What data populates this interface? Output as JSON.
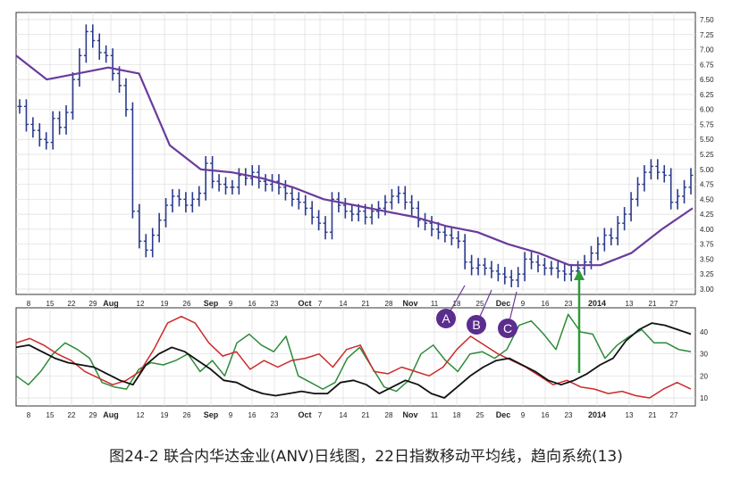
{
  "caption": "图24-2 联合内华达金业(ANV)日线图，22日指数移动平均线，趋向系统(13)",
  "chart_data": [
    {
      "type": "line",
      "title": "",
      "x_tick_labels": [
        "8",
        "15",
        "22",
        "29",
        "Aug",
        "12",
        "19",
        "26",
        "Sep",
        "9",
        "16",
        "23",
        "Oct",
        "7",
        "14",
        "21",
        "28",
        "Nov",
        "11",
        "18",
        "25",
        "Dec",
        "9",
        "16",
        "23",
        "2014",
        "13",
        "21",
        "27"
      ],
      "month_labels": [
        "Aug",
        "Sep",
        "Oct",
        "Nov",
        "Dec",
        "2014"
      ],
      "ylim": [
        3.0,
        7.5
      ],
      "y_ticks": [
        "3.00",
        "3.25",
        "3.50",
        "3.75",
        "4.00",
        "4.25",
        "4.50",
        "4.75",
        "5.00",
        "5.25",
        "5.50",
        "5.75",
        "6.00",
        "6.25",
        "6.50",
        "6.75",
        "7.00",
        "7.25",
        "7.50"
      ],
      "grid": true,
      "annotations": [
        "A",
        "B",
        "C"
      ],
      "series": [
        {
          "style": "ohlc",
          "color": "#2b3a8c",
          "values": [
            6.05,
            5.75,
            5.65,
            5.5,
            5.45,
            5.85,
            5.7,
            5.95,
            6.5,
            6.9,
            7.3,
            7.15,
            6.95,
            6.9,
            6.6,
            6.4,
            6.0,
            4.3,
            3.8,
            3.65,
            3.9,
            4.15,
            4.4,
            4.55,
            4.5,
            4.4,
            4.5,
            4.6,
            5.1,
            4.8,
            4.75,
            4.7,
            4.7,
            4.9,
            4.85,
            4.95,
            4.8,
            4.75,
            4.8,
            4.7,
            4.6,
            4.5,
            4.45,
            4.35,
            4.2,
            4.1,
            3.95,
            4.5,
            4.4,
            4.3,
            4.25,
            4.3,
            4.2,
            4.3,
            4.35,
            4.45,
            4.55,
            4.6,
            4.45,
            4.35,
            4.15,
            4.1,
            4.0,
            3.95,
            3.9,
            3.85,
            3.8,
            3.45,
            3.35,
            3.4,
            3.35,
            3.3,
            3.25,
            3.2,
            3.15,
            3.25,
            3.5,
            3.45,
            3.4,
            3.35,
            3.35,
            3.3,
            3.25,
            3.3,
            3.35,
            3.45,
            3.6,
            3.75,
            3.9,
            3.85,
            4.1,
            4.25,
            4.5,
            4.75,
            4.95,
            5.05,
            4.95,
            4.9,
            4.45,
            4.55,
            4.7,
            4.9
          ]
        },
        {
          "name": "",
          "style": "ema-22",
          "color": "#6a3b9c",
          "values": [
            6.9,
            6.5,
            6.6,
            6.7,
            6.6,
            5.4,
            5.0,
            4.95,
            4.85,
            4.7,
            4.5,
            4.4,
            4.3,
            4.2,
            4.05,
            3.95,
            3.75,
            3.6,
            3.4,
            3.4,
            3.6,
            4.0,
            4.35
          ]
        }
      ]
    },
    {
      "type": "line",
      "title": "",
      "x_tick_labels": [
        "8",
        "15",
        "22",
        "29",
        "Aug",
        "12",
        "19",
        "26",
        "Sep",
        "9",
        "16",
        "23",
        "Oct",
        "7",
        "14",
        "21",
        "28",
        "Nov",
        "11",
        "18",
        "25",
        "Dec",
        "9",
        "16",
        "23",
        "2014",
        "13",
        "21",
        "27"
      ],
      "ylim": [
        5,
        50
      ],
      "y_ticks": [
        "10",
        "20",
        "30",
        "40"
      ],
      "grid": true,
      "series": [
        {
          "color": "#2e8b3a",
          "values": [
            20,
            16,
            22,
            30,
            35,
            32,
            28,
            17,
            15,
            14,
            23,
            26,
            25,
            27,
            30,
            22,
            27,
            20,
            35,
            39,
            34,
            31,
            38,
            20,
            17,
            14,
            17,
            28,
            33,
            24,
            15,
            13,
            18,
            30,
            34,
            27,
            22,
            30,
            31,
            28,
            32,
            43,
            45,
            39,
            32,
            48,
            40,
            39,
            28,
            34,
            38,
            41,
            35,
            35,
            32,
            31
          ]
        },
        {
          "color": "#cc2a2a",
          "values": [
            35,
            37,
            34,
            30,
            27,
            22,
            19,
            16,
            18,
            22,
            32,
            44,
            47,
            44,
            35,
            29,
            31,
            23,
            27,
            24,
            27,
            28,
            30,
            24,
            32,
            34,
            22,
            21,
            24,
            22,
            20,
            24,
            32,
            38,
            34,
            30,
            27,
            24,
            20,
            16,
            18,
            15,
            14,
            12,
            13,
            11,
            10,
            14,
            17,
            14
          ]
        },
        {
          "color": "#111111",
          "values": [
            33,
            34,
            31,
            28,
            26,
            25,
            24,
            21,
            18,
            16,
            25,
            30,
            33,
            31,
            27,
            23,
            18,
            17,
            14,
            12,
            11,
            12,
            13,
            12,
            12,
            17,
            18,
            16,
            12,
            15,
            18,
            16,
            12,
            10,
            15,
            20,
            24,
            27,
            28,
            25,
            22,
            18,
            16,
            18,
            21,
            25,
            28,
            36,
            41,
            44,
            43,
            41,
            39
          ]
        }
      ]
    }
  ]
}
